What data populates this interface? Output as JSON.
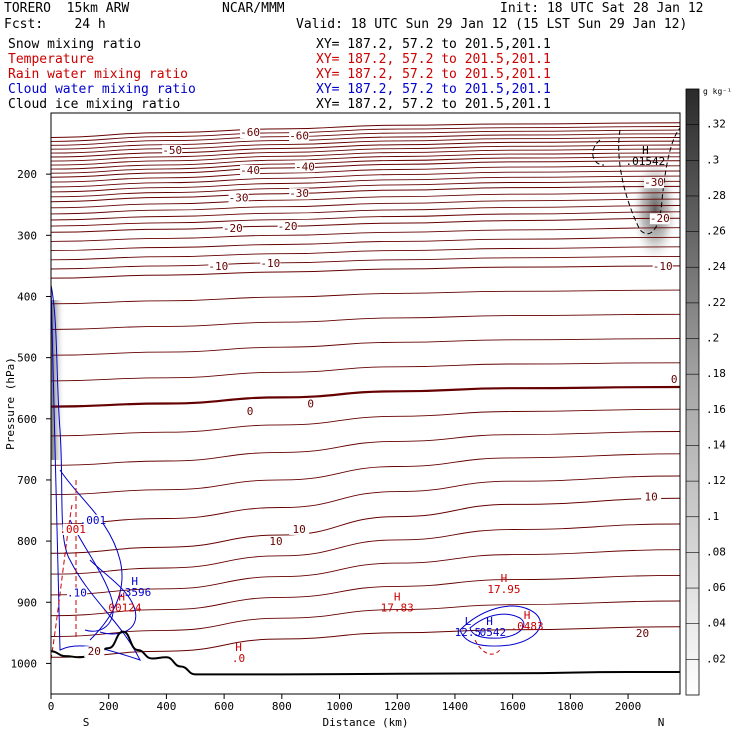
{
  "header": {
    "model": "TORERO  15km ARW",
    "center": "NCAR/MMM",
    "init": "Init: 18 UTC Sat 28 Jan 12",
    "fcst": "Fcst:    24 h",
    "valid": "Valid: 18 UTC Sun 29 Jan 12 (15 LST Sun 29 Jan 12)",
    "xy": "XY= 187.2, 57.2 to 201.5,201.1"
  },
  "fields": [
    {
      "label": "Snow mixing ratio",
      "color": "#000000"
    },
    {
      "label": "Temperature",
      "color": "#cc0000"
    },
    {
      "label": "Rain water mixing ratio",
      "color": "#cc0000"
    },
    {
      "label": "Cloud water mixing ratio",
      "color": "#0000cc"
    },
    {
      "label": "Cloud ice mixing ratio",
      "color": "#000000"
    }
  ],
  "chart_data": {
    "type": "cross-section",
    "xlabel": "Distance (km)",
    "ylabel": "Pressure (hPa)",
    "xlim": [
      0,
      2180
    ],
    "ylim": [
      1050,
      100
    ],
    "xticks": [
      0,
      200,
      400,
      600,
      800,
      1000,
      1200,
      1400,
      1600,
      1800,
      2000
    ],
    "yticks": [
      200,
      300,
      400,
      500,
      600,
      700,
      800,
      900,
      1000
    ],
    "endpoint_labels": {
      "left": "S",
      "right": "N"
    },
    "colorbar": {
      "unit": "g kg⁻¹",
      "ticks": [
        ".02",
        ".04",
        ".06",
        ".08",
        ".1",
        ".12",
        ".14",
        ".16",
        ".18",
        ".2",
        ".22",
        ".24",
        ".26",
        ".28",
        ".3",
        ".32"
      ],
      "min": 0,
      "max": 0.34
    },
    "temperature_isotherms": [
      {
        "value": -60,
        "x": [
          0,
          400,
          800,
          1200,
          1600,
          2180
        ],
        "p": [
          140,
          132,
          126,
          120,
          118,
          116
        ]
      },
      {
        "value": -50,
        "x": [
          0,
          400,
          800,
          1200,
          1600,
          2180
        ],
        "p": [
          172,
          165,
          158,
          152,
          148,
          146
        ]
      },
      {
        "value": -40,
        "x": [
          0,
          400,
          800,
          1200,
          1600,
          2180
        ],
        "p": [
          205,
          198,
          190,
          184,
          180,
          178
        ]
      },
      {
        "value": -30,
        "x": [
          0,
          400,
          800,
          1200,
          1600,
          2180
        ],
        "p": [
          245,
          238,
          232,
          226,
          222,
          220
        ]
      },
      {
        "value": -20,
        "x": [
          0,
          400,
          800,
          1200,
          1600,
          2180
        ],
        "p": [
          295,
          290,
          285,
          280,
          276,
          272
        ]
      },
      {
        "value": -10,
        "x": [
          0,
          400,
          800,
          1200,
          1600,
          2180
        ],
        "p": [
          370,
          365,
          360,
          355,
          352,
          350
        ]
      },
      {
        "value": 0,
        "x": [
          0,
          400,
          800,
          1200,
          1600,
          2180
        ],
        "p": [
          580,
          575,
          565,
          555,
          550,
          548
        ]
      },
      {
        "value": 10,
        "x": [
          0,
          400,
          800,
          1200,
          1600,
          2180
        ],
        "p": [
          820,
          810,
          790,
          760,
          740,
          730
        ]
      },
      {
        "value": 20,
        "x": [
          0,
          400,
          800,
          1200,
          1600,
          2180
        ],
        "p": [
          990,
          980,
          960,
          950,
          945,
          940
        ]
      }
    ],
    "contour_labels": [
      {
        "text": "-60",
        "x": 690,
        "p": 136,
        "color": "#660000"
      },
      {
        "text": "-60",
        "x": 860,
        "p": 142,
        "color": "#660000"
      },
      {
        "text": "-50",
        "x": 420,
        "p": 165,
        "color": "#660000"
      },
      {
        "text": "-40",
        "x": 690,
        "p": 198,
        "color": "#660000"
      },
      {
        "text": "-40",
        "x": 880,
        "p": 192,
        "color": "#660000"
      },
      {
        "text": "-30",
        "x": 650,
        "p": 243,
        "color": "#660000"
      },
      {
        "text": "-30",
        "x": 860,
        "p": 236,
        "color": "#660000"
      },
      {
        "text": "-30",
        "x": 2090,
        "p": 218,
        "color": "#660000"
      },
      {
        "text": "-20",
        "x": 630,
        "p": 293,
        "color": "#660000"
      },
      {
        "text": "-20",
        "x": 820,
        "p": 290,
        "color": "#660000"
      },
      {
        "text": "-20",
        "x": 2110,
        "p": 277,
        "color": "#660000"
      },
      {
        "text": "-10",
        "x": 580,
        "p": 355,
        "color": "#660000"
      },
      {
        "text": "-10",
        "x": 760,
        "p": 350,
        "color": "#660000"
      },
      {
        "text": "-10",
        "x": 2120,
        "p": 355,
        "color": "#660000"
      },
      {
        "text": "0",
        "x": 690,
        "p": 592,
        "color": "#660000"
      },
      {
        "text": "0",
        "x": 900,
        "p": 580,
        "color": "#660000"
      },
      {
        "text": "0",
        "x": 2160,
        "p": 540,
        "color": "#660000"
      },
      {
        "text": "10",
        "x": 780,
        "p": 805,
        "color": "#660000"
      },
      {
        "text": "10",
        "x": 860,
        "p": 785,
        "color": "#660000"
      },
      {
        "text": "10",
        "x": 2080,
        "p": 732,
        "color": "#660000"
      },
      {
        "text": "20",
        "x": 150,
        "p": 985,
        "color": "#660000"
      },
      {
        "text": "20",
        "x": 2050,
        "p": 955,
        "color": "#660000"
      },
      {
        "text": ".001",
        "x": 145,
        "p": 770,
        "color": "#0000cc"
      },
      {
        "text": ".001",
        "x": 75,
        "p": 785,
        "color": "#cc0000"
      },
      {
        "text": ".10",
        "x": 90,
        "p": 889,
        "color": "#0000cc"
      }
    ],
    "extrema_labels": [
      {
        "letter": "H",
        "value": ".01542",
        "x": 2060,
        "p": 185,
        "color": "#000000"
      },
      {
        "letter": "H",
        "value": ".3596",
        "x": 290,
        "p": 890,
        "color": "#0000cc"
      },
      {
        "letter": "H",
        "value": ".00124",
        "x": 245,
        "p": 915,
        "color": "#cc0000"
      },
      {
        "letter": "H",
        "value": "17.83",
        "x": 1200,
        "p": 915,
        "color": "#cc0000"
      },
      {
        "letter": "H",
        "value": "17.95",
        "x": 1570,
        "p": 885,
        "color": "#cc0000"
      },
      {
        "letter": "H",
        "value": ".0",
        "x": 650,
        "p": 998,
        "color": "#cc0000"
      },
      {
        "letter": "L",
        "value": "12.5",
        "x": 1445,
        "p": 955,
        "color": "#0000cc"
      },
      {
        "letter": "H",
        "value": ".0542",
        "x": 1520,
        "p": 955,
        "color": "#0000cc"
      },
      {
        "letter": "H",
        "value": ".0483",
        "x": 1650,
        "p": 945,
        "color": "#cc0000"
      }
    ],
    "terrain": {
      "x": [
        0,
        50,
        100,
        150,
        200,
        250,
        300,
        350,
        400,
        450,
        500,
        600,
        800,
        1200,
        1600,
        2000,
        2180
      ],
      "p": [
        980,
        988,
        990,
        985,
        975,
        948,
        978,
        992,
        990,
        1005,
        1018,
        1018,
        1018,
        1017,
        1016,
        1014,
        1014
      ]
    },
    "ice_mixing": {
      "x_center": 2110,
      "p_center": 230,
      "width_km": 110,
      "depth_hpa": 140,
      "max": 0.32
    }
  }
}
